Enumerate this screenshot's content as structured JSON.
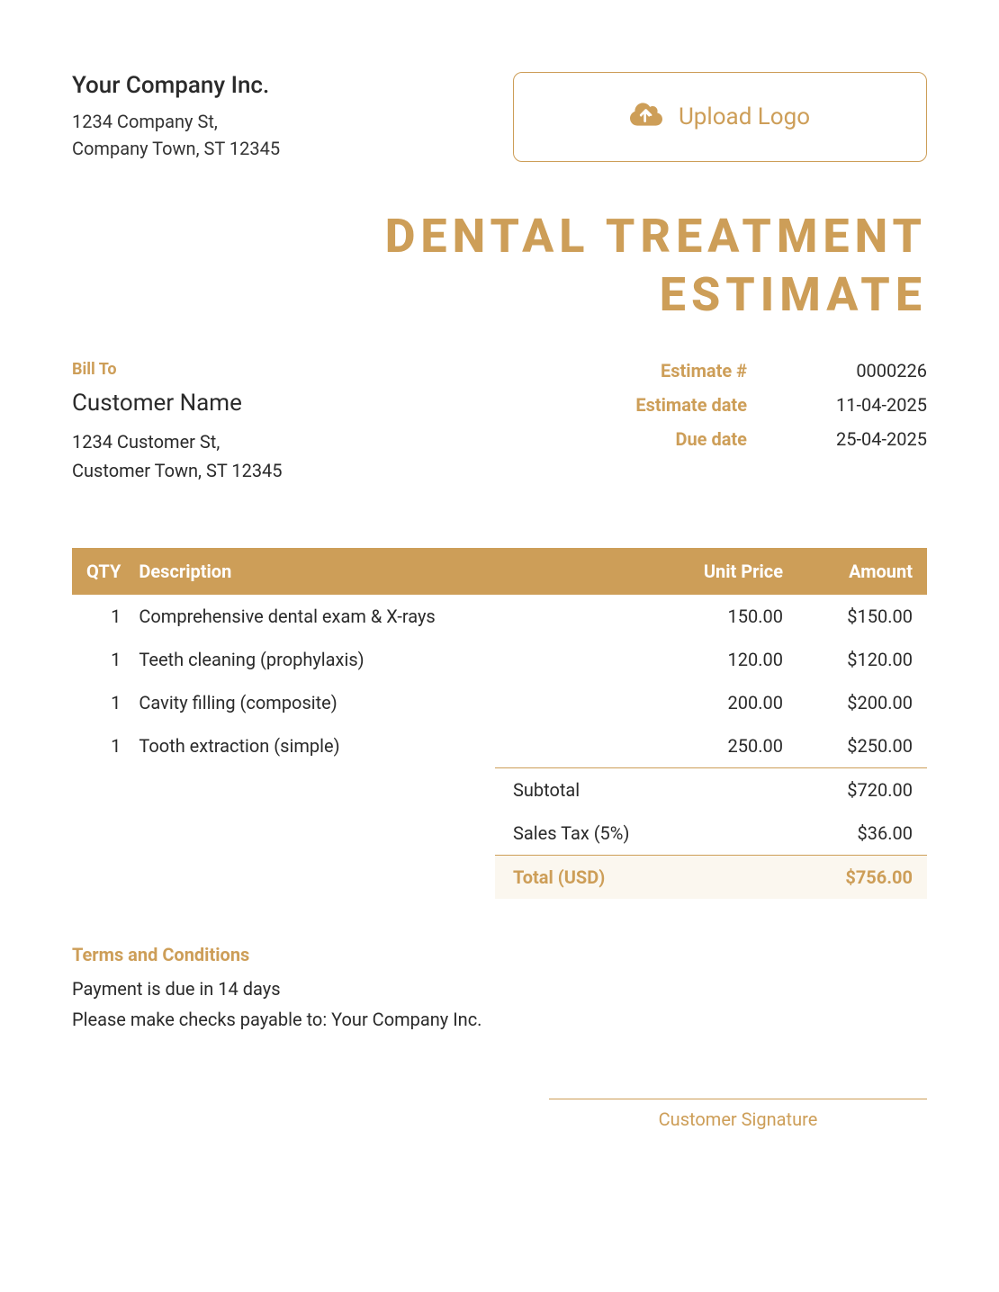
{
  "colors": {
    "accent": "#cd9e58",
    "text": "#2a2a2a",
    "total_bg": "#fbf7ef",
    "white": "#ffffff"
  },
  "company": {
    "name": "Your Company Inc.",
    "addr1": "1234 Company St,",
    "addr2": "Company Town, ST 12345"
  },
  "upload": {
    "label": "Upload Logo"
  },
  "title_line1": "DENTAL TREATMENT",
  "title_line2": "ESTIMATE",
  "bill_to": {
    "label": "Bill To",
    "name": "Customer Name",
    "addr1": "1234 Customer St,",
    "addr2": "Customer Town, ST 12345"
  },
  "meta": {
    "estimate_no_label": "Estimate #",
    "estimate_no": "0000226",
    "estimate_date_label": "Estimate date",
    "estimate_date": "11-04-2025",
    "due_date_label": "Due date",
    "due_date": "25-04-2025"
  },
  "table": {
    "headers": {
      "qty": "QTY",
      "desc": "Description",
      "unit": "Unit Price",
      "amount": "Amount"
    },
    "rows": [
      {
        "qty": "1",
        "desc": "Comprehensive dental exam & X-rays",
        "unit": "150.00",
        "amount": "$150.00"
      },
      {
        "qty": "1",
        "desc": "Teeth cleaning (prophylaxis)",
        "unit": "120.00",
        "amount": "$120.00"
      },
      {
        "qty": "1",
        "desc": "Cavity filling (composite)",
        "unit": "200.00",
        "amount": "$200.00"
      },
      {
        "qty": "1",
        "desc": "Tooth extraction (simple)",
        "unit": "250.00",
        "amount": "$250.00"
      }
    ]
  },
  "totals": {
    "subtotal_label": "Subtotal",
    "subtotal": "$720.00",
    "tax_label": "Sales Tax (5%)",
    "tax": "$36.00",
    "grand_label": "Total (USD)",
    "grand": "$756.00"
  },
  "terms": {
    "title": "Terms and Conditions",
    "line1": "Payment is due in 14 days",
    "line2": "Please make checks payable to: Your Company Inc."
  },
  "signature": {
    "label": "Customer Signature"
  }
}
